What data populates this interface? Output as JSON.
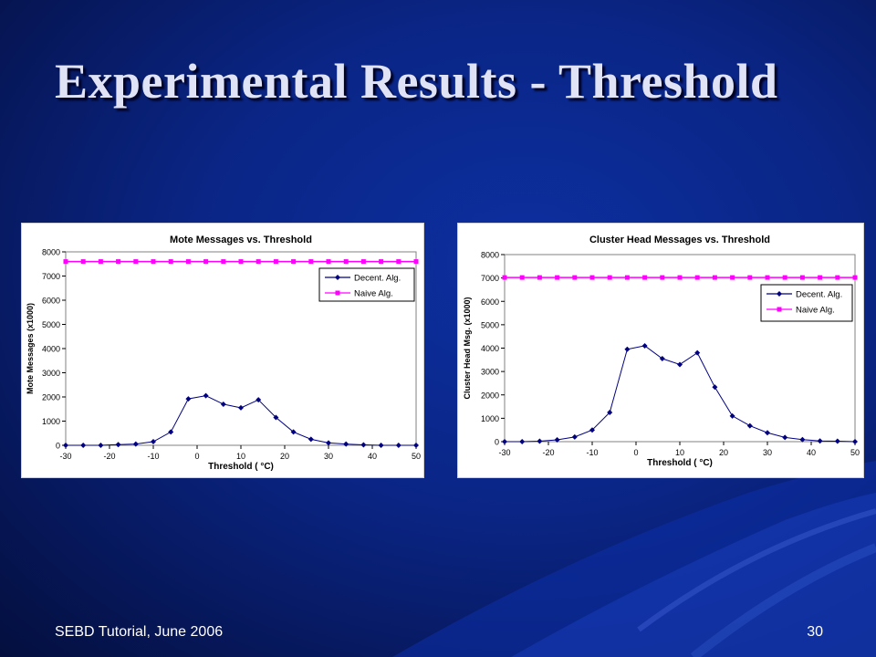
{
  "slide": {
    "title": "Experimental Results - Threshold",
    "footer_left": "SEBD Tutorial, June 2006",
    "page_number": "30"
  },
  "colors": {
    "decent": "#000080",
    "naive": "#ff00ff",
    "plot_bg": "#ffffff",
    "slide_bg": "#0a2585"
  },
  "chart_data": [
    {
      "type": "line",
      "title": "Mote Messages vs. Threshold",
      "xlabel": "Threshold ( °C)",
      "ylabel": "Mote Messages (x1000)",
      "xlim": [
        -30,
        50
      ],
      "ylim": [
        0,
        8000
      ],
      "xticks": [
        "-30",
        "-20",
        "-10",
        "0",
        "10",
        "20",
        "30",
        "40",
        "50"
      ],
      "yticks": [
        "0",
        "1000",
        "2000",
        "3000",
        "4000",
        "5000",
        "6000",
        "7000",
        "8000"
      ],
      "grid": false,
      "legend": "top-right",
      "x": [
        -30,
        -26,
        -22,
        -18,
        -14,
        -10,
        -6,
        -2,
        2,
        6,
        10,
        14,
        18,
        22,
        26,
        30,
        34,
        38,
        42,
        46,
        50
      ],
      "series": [
        {
          "name": "Decent. Alg.",
          "marker": "diamond",
          "values": [
            0,
            0,
            0,
            30,
            50,
            150,
            550,
            1920,
            2050,
            1700,
            1550,
            1880,
            1150,
            550,
            250,
            100,
            50,
            20,
            0,
            0,
            0
          ]
        },
        {
          "name": "Naive Alg.",
          "marker": "square",
          "values": [
            7600,
            7600,
            7600,
            7600,
            7600,
            7600,
            7600,
            7600,
            7600,
            7600,
            7600,
            7600,
            7600,
            7600,
            7600,
            7600,
            7600,
            7600,
            7600,
            7600,
            7600
          ]
        }
      ]
    },
    {
      "type": "line",
      "title": "Cluster Head Messages vs. Threshold",
      "xlabel": "Threshold ( °C)",
      "ylabel": "Cluster Head Msg. (x1000)",
      "xlim": [
        -30,
        50
      ],
      "ylim": [
        0,
        8000
      ],
      "xticks": [
        "-30",
        "-20",
        "-10",
        "0",
        "10",
        "20",
        "30",
        "40",
        "50"
      ],
      "yticks": [
        "0",
        "1000",
        "2000",
        "3000",
        "4000",
        "5000",
        "6000",
        "7000",
        "8000"
      ],
      "grid": false,
      "legend": "top-right",
      "x": [
        -30,
        -26,
        -22,
        -18,
        -14,
        -10,
        -6,
        -2,
        2,
        6,
        10,
        14,
        18,
        22,
        26,
        30,
        34,
        38,
        42,
        46,
        50
      ],
      "series": [
        {
          "name": "Decent. Alg.",
          "marker": "diamond",
          "values": [
            0,
            0,
            20,
            80,
            200,
            500,
            1250,
            3950,
            4100,
            3550,
            3300,
            3800,
            2330,
            1100,
            680,
            380,
            180,
            90,
            30,
            20,
            0
          ]
        },
        {
          "name": "Naive Alg.",
          "marker": "square",
          "values": [
            7020,
            7020,
            7020,
            7020,
            7020,
            7020,
            7020,
            7020,
            7020,
            7020,
            7020,
            7020,
            7020,
            7020,
            7020,
            7020,
            7020,
            7020,
            7020,
            7020,
            7020
          ]
        }
      ]
    }
  ]
}
